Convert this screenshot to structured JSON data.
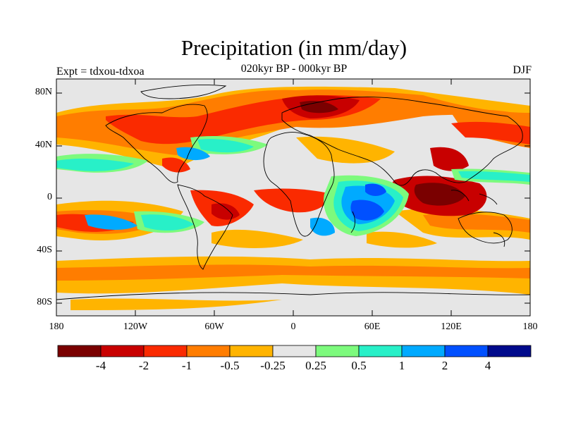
{
  "title": "Precipitation (in mm/day)",
  "subtitle": "020kyr BP - 000kyr BP",
  "experiment_label": "Expt = tdxou-tdxoa",
  "season": "DJF",
  "lat_ticks": [
    "80N",
    "40N",
    "0",
    "40S",
    "80S"
  ],
  "lon_ticks": [
    "180",
    "120W",
    "60W",
    "0",
    "60E",
    "120E",
    "180"
  ],
  "colorbar": {
    "colors": [
      "#7a0000",
      "#c80000",
      "#fa2a00",
      "#ff7d00",
      "#ffb400",
      "#e6e6e6",
      "#7dfa7d",
      "#28f0c8",
      "#00aaff",
      "#0050ff",
      "#000a8c"
    ],
    "labels": [
      "-4",
      "-2",
      "-1",
      "-0.5",
      "-0.25",
      "0.25",
      "0.5",
      "1",
      "2",
      "4"
    ]
  },
  "background_color": "#e6e6e6"
}
